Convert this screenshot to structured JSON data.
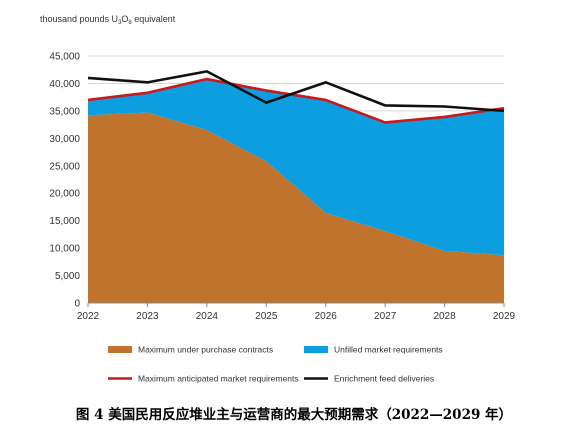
{
  "chart_data": {
    "type": "area",
    "unit_label_prefix": "thousand pounds U",
    "unit_label_sub1": "3",
    "unit_label_mid": "O",
    "unit_label_sub2": "8",
    "unit_label_suffix": " equivalent",
    "x": [
      2022,
      2023,
      2024,
      2025,
      2026,
      2027,
      2028,
      2029
    ],
    "x_tick_labels": [
      "2022",
      "2023",
      "2024",
      "2025",
      "2026",
      "2027",
      "2028",
      "2029"
    ],
    "y_ticks": [
      0,
      5000,
      10000,
      15000,
      20000,
      25000,
      30000,
      35000,
      40000,
      45000
    ],
    "y_tick_labels": [
      "0",
      "5,000",
      "10,000",
      "15,000",
      "20,000",
      "25,000",
      "30,000",
      "35,000",
      "40,000",
      "45,000"
    ],
    "ylim": [
      0,
      45000
    ],
    "grid": "horizontal",
    "legend_position": "bottom",
    "series": [
      {
        "name": "Maximum under purchase contracts",
        "kind": "area",
        "color": "#c0732c",
        "values": [
          34200,
          34700,
          31500,
          25800,
          16400,
          13100,
          9500,
          8700
        ]
      },
      {
        "name": "Unfilled market requirements",
        "kind": "area",
        "color": "#0d9ee0",
        "values": [
          2800,
          3600,
          9200,
          12900,
          20600,
          19800,
          24400,
          26800
        ]
      },
      {
        "name": "Maximum anticipated market requirements",
        "kind": "line",
        "color": "#c8191f",
        "values": [
          37000,
          38300,
          40800,
          38700,
          37000,
          32900,
          33900,
          35500
        ]
      },
      {
        "name": "Enrichment feed deliveries",
        "kind": "line",
        "color": "#111111",
        "values": [
          41000,
          40200,
          42200,
          36500,
          40200,
          36000,
          35800,
          35000
        ]
      }
    ],
    "caption": "图 4  美国民用反应堆业主与运营商的最大预期需求（2022—2029 年）"
  }
}
